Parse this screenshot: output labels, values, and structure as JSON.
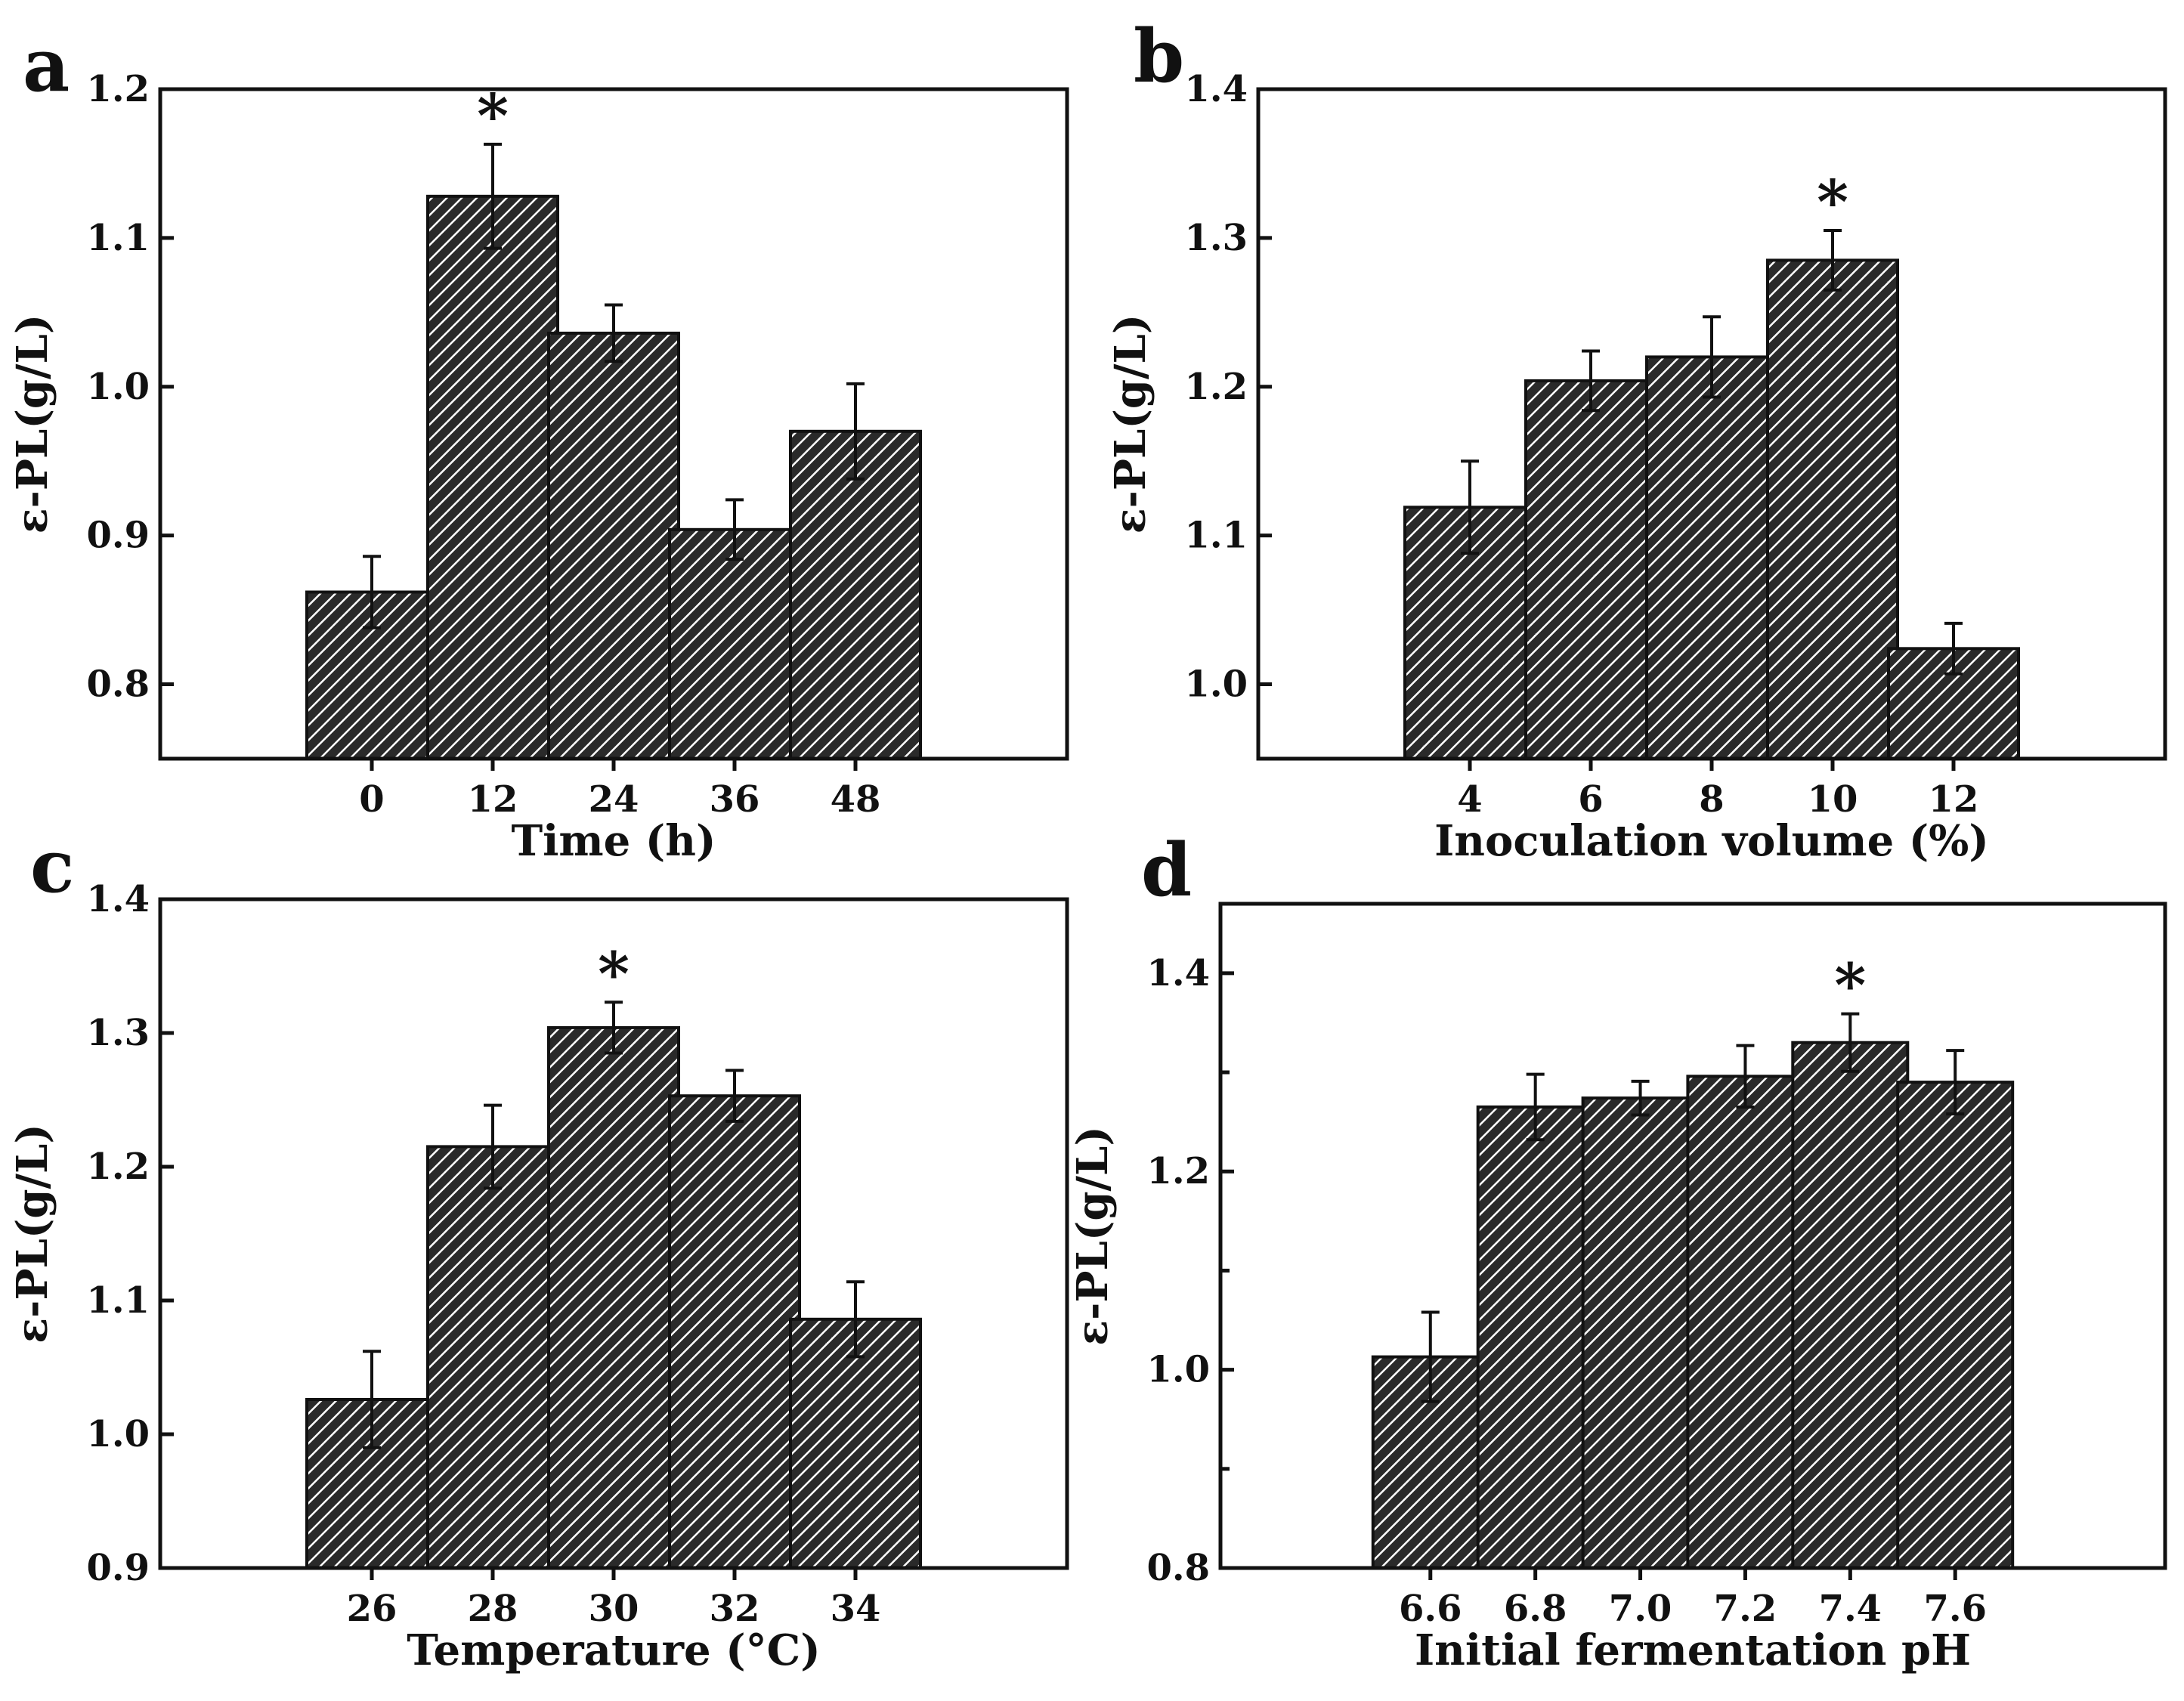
{
  "chart_data": [
    {
      "type": "bar",
      "panel": "a",
      "categories": [
        "0",
        "12",
        "24",
        "36",
        "48"
      ],
      "values": [
        0.862,
        1.128,
        1.036,
        0.904,
        0.97
      ],
      "errors": [
        0.024,
        0.035,
        0.019,
        0.02,
        0.032
      ],
      "significant": [
        false,
        true,
        false,
        false,
        false
      ],
      "marker": "*",
      "xlabel": "Time (h)",
      "ylabel": "ε-PL(g/L)",
      "ylim": [
        0.75,
        1.2
      ],
      "yticks": [
        "0.8",
        "0.9",
        "1.0",
        "1.1",
        "1.2"
      ],
      "bar_fill": "hatched",
      "grid": false
    },
    {
      "type": "bar",
      "panel": "b",
      "categories": [
        "4",
        "6",
        "8",
        "10",
        "12"
      ],
      "values": [
        1.119,
        1.204,
        1.22,
        1.285,
        1.024
      ],
      "errors": [
        0.031,
        0.02,
        0.027,
        0.02,
        0.017
      ],
      "significant": [
        false,
        false,
        false,
        true,
        false
      ],
      "marker": "*",
      "xlabel": "Inoculation volume (%)",
      "ylabel": "ε-PL(g/L)",
      "ylim": [
        0.95,
        1.4
      ],
      "yticks": [
        "1.0",
        "1.1",
        "1.2",
        "1.3",
        "1.4"
      ],
      "bar_fill": "hatched",
      "grid": false
    },
    {
      "type": "bar",
      "panel": "c",
      "categories": [
        "26",
        "28",
        "30",
        "32",
        "34"
      ],
      "values": [
        1.026,
        1.215,
        1.304,
        1.253,
        1.086
      ],
      "errors": [
        0.036,
        0.031,
        0.019,
        0.019,
        0.028
      ],
      "significant": [
        false,
        false,
        true,
        false,
        false
      ],
      "marker": "*",
      "xlabel": "Temperature (°C)",
      "ylabel": "ε-PL(g/L)",
      "ylim": [
        0.9,
        1.4
      ],
      "yticks": [
        "0.9",
        "1.0",
        "1.1",
        "1.2",
        "1.3",
        "1.4"
      ],
      "bar_fill": "hatched",
      "grid": false
    },
    {
      "type": "bar",
      "panel": "d",
      "categories": [
        "6.6",
        "6.8",
        "7.0",
        "7.2",
        "7.4",
        "7.6"
      ],
      "values": [
        1.013,
        1.265,
        1.274,
        1.296,
        1.33,
        1.29
      ],
      "errors": [
        0.045,
        0.033,
        0.017,
        0.031,
        0.029,
        0.032
      ],
      "significant": [
        false,
        false,
        false,
        false,
        true,
        false
      ],
      "marker": "*",
      "xlabel": "Initial fermentation pH",
      "ylabel": "ε-PL(g/L)",
      "ylim": [
        0.8,
        1.47
      ],
      "yticks": [
        "0.8",
        "1.0",
        "1.2",
        "1.4"
      ],
      "bar_fill": "hatched",
      "grid": false
    }
  ]
}
